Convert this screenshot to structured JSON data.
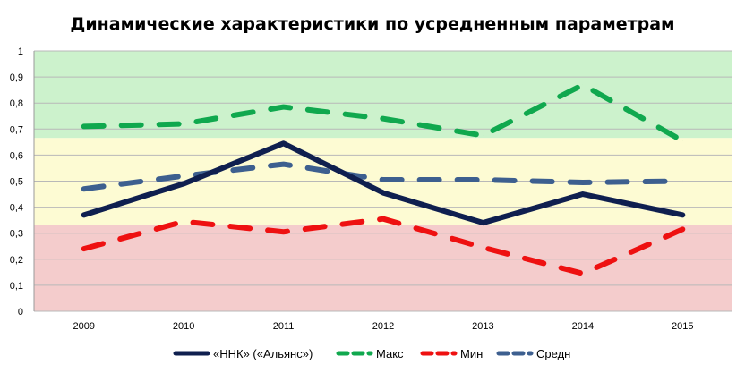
{
  "chart_data": {
    "type": "line",
    "title": "Динамические характеристики по усредненным параметрам",
    "xlabel": "",
    "ylabel": "",
    "categories": [
      "2009",
      "2010",
      "2011",
      "2012",
      "2013",
      "2014",
      "2015"
    ],
    "ylim": [
      0,
      1
    ],
    "yticks": [
      "0",
      "0,1",
      "0,2",
      "0,3",
      "0,4",
      "0,5",
      "0,6",
      "0,7",
      "0,8",
      "0,9",
      "1"
    ],
    "grid": true,
    "legend_position": "bottom",
    "background_bands": [
      {
        "from": 0,
        "to": 0.333,
        "color": "#f4cccc"
      },
      {
        "from": 0.333,
        "to": 0.666,
        "color": "#fdfbd3"
      },
      {
        "from": 0.666,
        "to": 1,
        "color": "#ccf2cc"
      }
    ],
    "series": [
      {
        "name": "«ННК» («Альянс»)",
        "values": [
          0.37,
          0.49,
          0.645,
          0.455,
          0.34,
          0.45,
          0.37
        ],
        "color": "#0f1f4f",
        "style": "solid"
      },
      {
        "name": "Макс",
        "values": [
          0.71,
          0.72,
          0.785,
          0.74,
          0.675,
          0.87,
          0.655
        ],
        "color": "#10a84e",
        "style": "dashed"
      },
      {
        "name": "Мин",
        "values": [
          0.24,
          0.345,
          0.305,
          0.355,
          0.245,
          0.145,
          0.315
        ],
        "color": "#ee1111",
        "style": "dashed"
      },
      {
        "name": "Средн",
        "values": [
          0.47,
          0.52,
          0.565,
          0.505,
          0.505,
          0.495,
          0.5
        ],
        "color": "#3d5f8f",
        "style": "dashed"
      }
    ]
  }
}
